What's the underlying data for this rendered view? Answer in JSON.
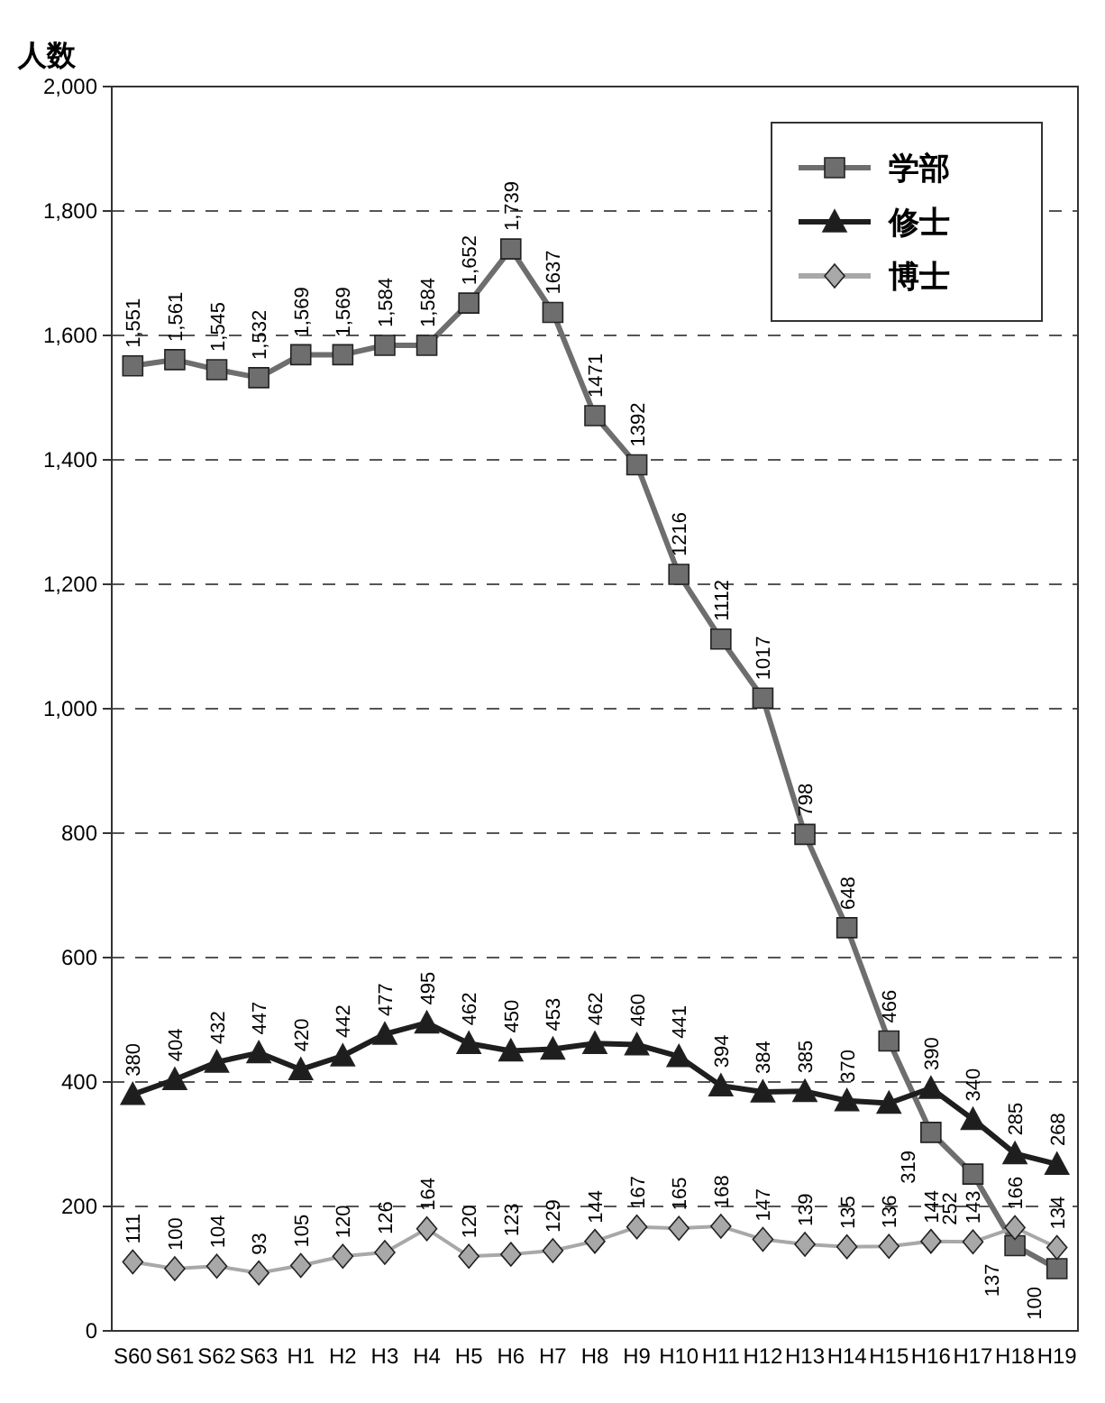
{
  "chart_data": {
    "type": "line",
    "ylabel": "人数",
    "categories": [
      "S60",
      "S61",
      "S62",
      "S63",
      "H1",
      "H2",
      "H3",
      "H4",
      "H5",
      "H6",
      "H7",
      "H8",
      "H9",
      "H10",
      "H11",
      "H12",
      "H13",
      "H14",
      "H15",
      "H16",
      "H17",
      "H18",
      "H19"
    ],
    "series": [
      {
        "name": "学部",
        "color": "#6e6e6e",
        "marker": "square",
        "values": [
          1551,
          1561,
          1545,
          1532,
          1569,
          1569,
          1584,
          1584,
          1652,
          1739,
          1637,
          1471,
          1392,
          1216,
          1112,
          1017,
          798,
          648,
          466,
          319,
          252,
          137,
          100
        ],
        "value_labels": [
          "1,551",
          "1,561",
          "1,545",
          "1,532",
          "1,569",
          "1,569",
          "1,584",
          "1,584",
          "1,652",
          "1,739",
          "1637",
          "1471",
          "1392",
          "1216",
          "1112",
          "1017",
          "798",
          "648",
          "466",
          "319",
          "252",
          "137",
          "100"
        ]
      },
      {
        "name": "修士",
        "color": "#1e1e1e",
        "marker": "triangle",
        "values": [
          380,
          404,
          432,
          447,
          420,
          442,
          477,
          495,
          462,
          450,
          453,
          462,
          460,
          441,
          394,
          384,
          385,
          370,
          366,
          390,
          340,
          285,
          268
        ],
        "value_labels": [
          "380",
          "404",
          "432",
          "447",
          "420",
          "442",
          "477",
          "495",
          "462",
          "450",
          "453",
          "462",
          "460",
          "441",
          "394",
          "384",
          "385",
          "370",
          null,
          "390",
          "340",
          "285",
          "268"
        ]
      },
      {
        "name": "博士",
        "color": "#a8a8a8",
        "marker": "diamond",
        "values": [
          111,
          100,
          104,
          93,
          105,
          120,
          126,
          164,
          120,
          123,
          129,
          144,
          167,
          165,
          168,
          147,
          139,
          135,
          136,
          144,
          143,
          166,
          134
        ],
        "value_labels": [
          "111",
          "100",
          "104",
          "93",
          "105",
          "120",
          "126",
          "164",
          "120",
          "123",
          "129",
          "144",
          "167",
          "165",
          "168",
          "147",
          "139",
          "135",
          "136",
          "144",
          "143",
          "166",
          "134"
        ]
      }
    ],
    "ylim": [
      0,
      2000
    ],
    "yticks": [
      0,
      200,
      400,
      600,
      800,
      {
        "value": 1000,
        "label": "1,000"
      },
      {
        "value": 1200,
        "label": "1,200"
      },
      {
        "value": 1400,
        "label": "1,400"
      },
      {
        "value": 1600,
        "label": "1,600"
      },
      {
        "value": 1800,
        "label": "1,800"
      },
      {
        "value": 2000,
        "label": "2,000"
      }
    ],
    "grid": "y",
    "legend": "top right",
    "line_style": "solid"
  }
}
